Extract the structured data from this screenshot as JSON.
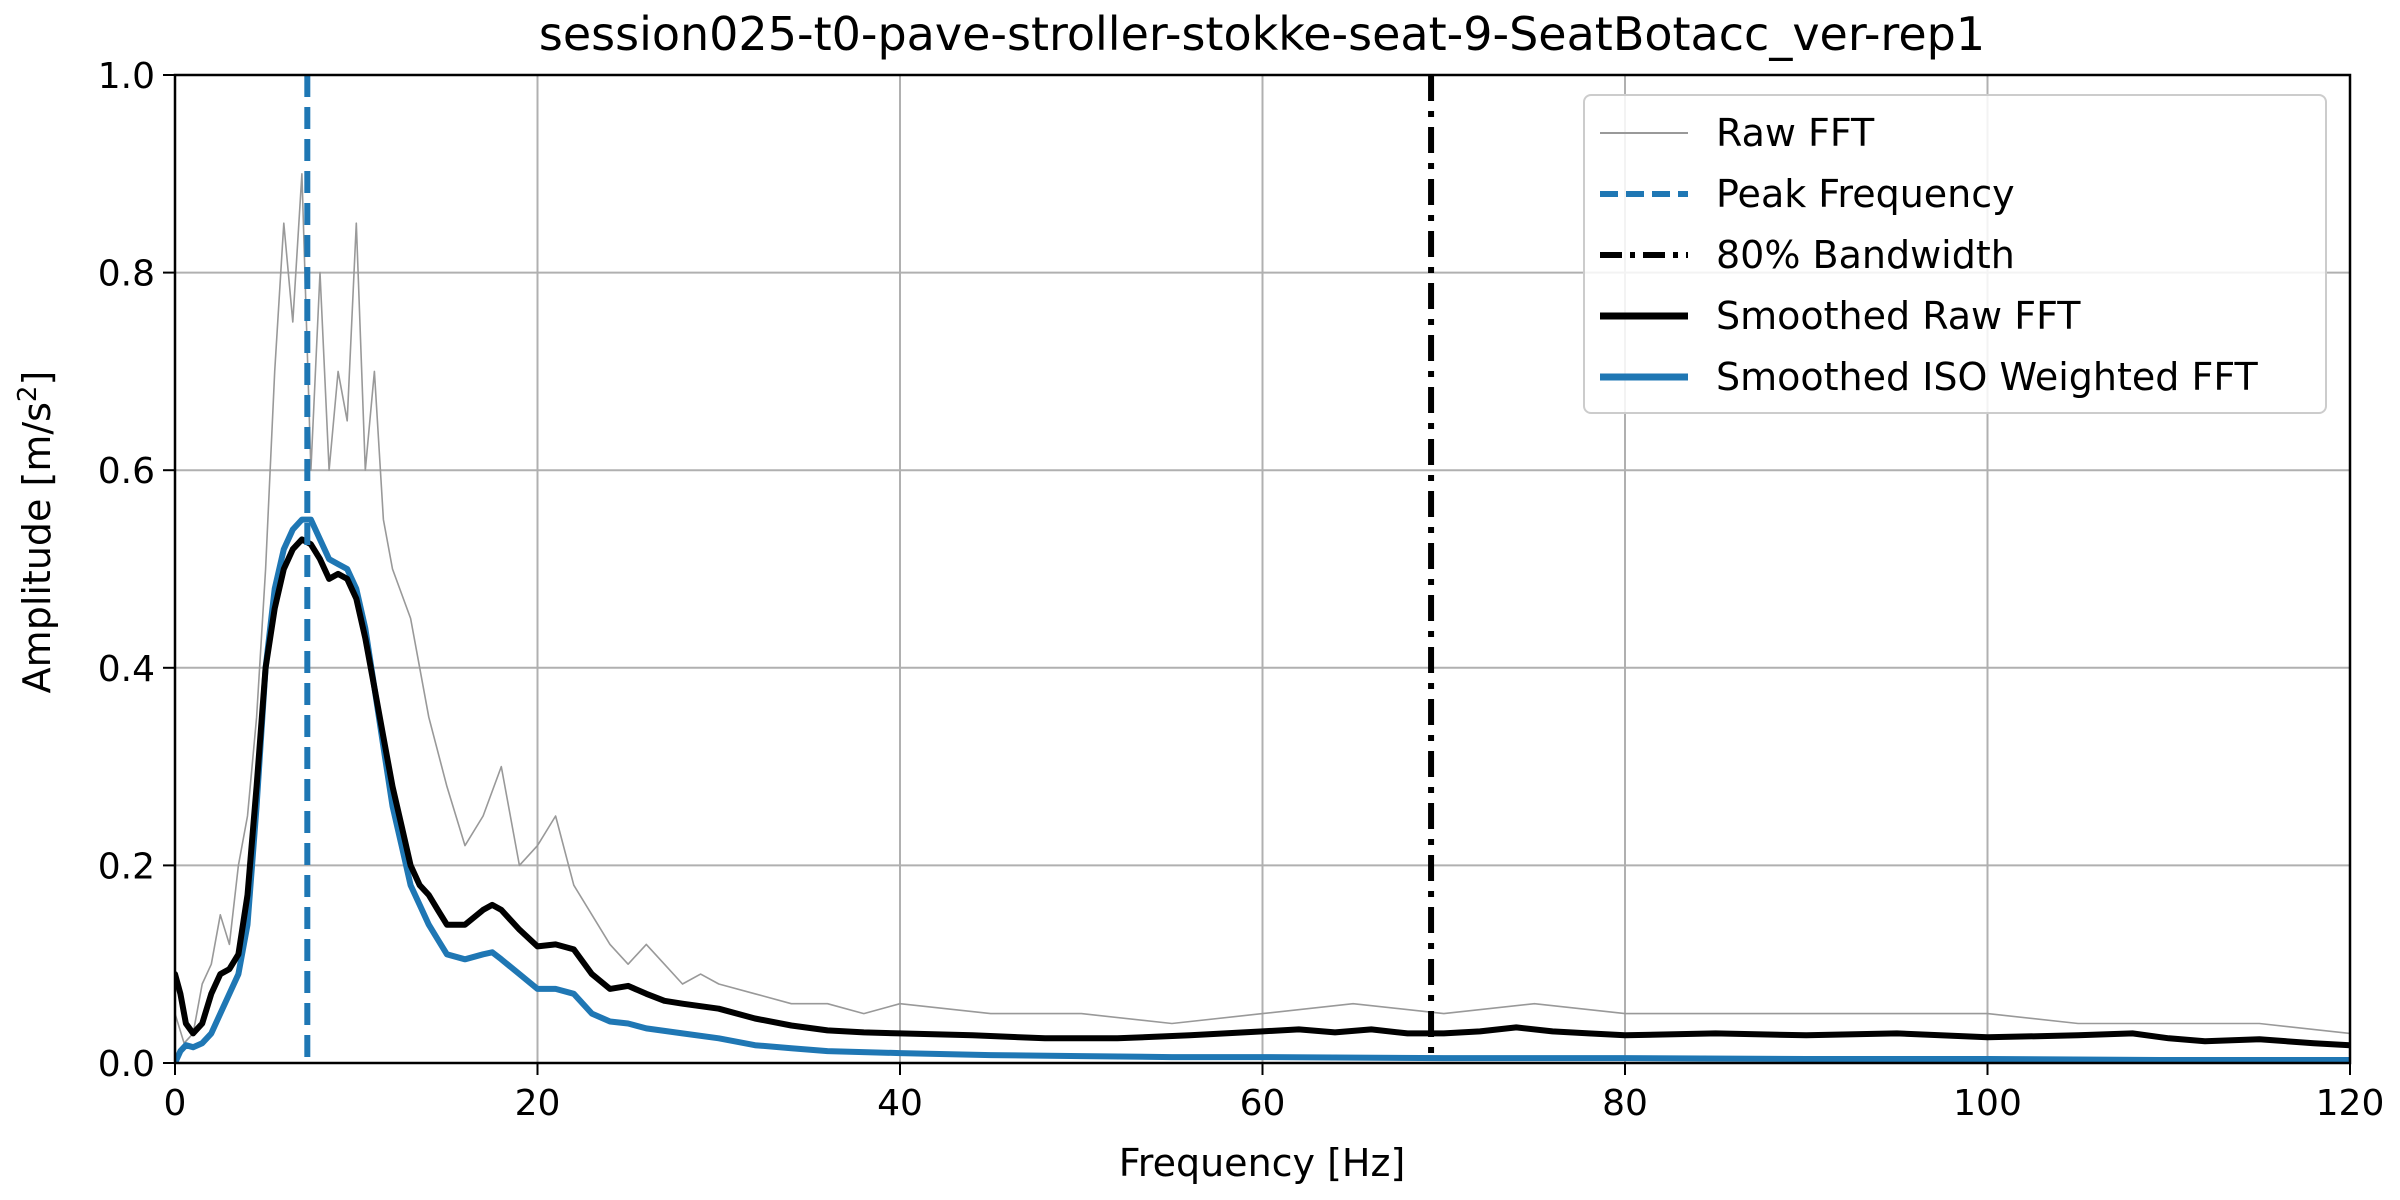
{
  "chart_data": {
    "type": "line",
    "title": "session025-t0-pave-stroller-stokke-seat-9-SeatBotacc_ver-rep1",
    "xlabel": "Frequency [Hz]",
    "ylabel_main": "Amplitude [m/s",
    "ylabel_sup": "2",
    "ylabel_tail": "]",
    "xlim": [
      0,
      120
    ],
    "ylim": [
      0,
      1.0
    ],
    "xticks": [
      0,
      20,
      40,
      60,
      80,
      100,
      120
    ],
    "yticks": [
      "0.0",
      "0.2",
      "0.4",
      "0.6",
      "0.8",
      "1.0"
    ],
    "grid": true,
    "legend_position": "top-right",
    "colors": {
      "raw": "#999999",
      "peak": "#1f77b4",
      "bandwidth": "#000000",
      "smoothed_raw": "#000000",
      "smoothed_iso": "#1f77b4"
    },
    "peak_frequency": 7.3,
    "bandwidth_80": 69.3,
    "series": [
      {
        "key": "raw",
        "name": "Raw FFT",
        "x": [
          0,
          0.5,
          1,
          1.5,
          2,
          2.5,
          3,
          3.5,
          4,
          4.5,
          5,
          5.5,
          6,
          6.5,
          7,
          7.5,
          8,
          8.5,
          9,
          9.5,
          10,
          10.5,
          11,
          11.5,
          12,
          13,
          14,
          15,
          16,
          17,
          18,
          19,
          20,
          21,
          22,
          23,
          24,
          25,
          26,
          27,
          28,
          29,
          30,
          32,
          34,
          36,
          38,
          40,
          45,
          50,
          55,
          60,
          65,
          70,
          75,
          80,
          85,
          90,
          95,
          100,
          105,
          110,
          115,
          120
        ],
        "y": [
          0.05,
          0.02,
          0.03,
          0.08,
          0.1,
          0.15,
          0.12,
          0.2,
          0.25,
          0.35,
          0.5,
          0.7,
          0.85,
          0.75,
          0.9,
          0.6,
          0.8,
          0.6,
          0.7,
          0.65,
          0.85,
          0.6,
          0.7,
          0.55,
          0.5,
          0.45,
          0.35,
          0.28,
          0.22,
          0.25,
          0.3,
          0.2,
          0.22,
          0.25,
          0.18,
          0.15,
          0.12,
          0.1,
          0.12,
          0.1,
          0.08,
          0.09,
          0.08,
          0.07,
          0.06,
          0.06,
          0.05,
          0.06,
          0.05,
          0.05,
          0.04,
          0.05,
          0.06,
          0.05,
          0.06,
          0.05,
          0.05,
          0.05,
          0.05,
          0.05,
          0.04,
          0.04,
          0.04,
          0.03
        ]
      },
      {
        "key": "smoothed_raw",
        "name": "Smoothed Raw FFT",
        "x": [
          0,
          0.3,
          0.6,
          1,
          1.5,
          2,
          2.5,
          3,
          3.5,
          4,
          4.5,
          5,
          5.5,
          6,
          6.5,
          7,
          7.5,
          8,
          8.5,
          9,
          9.5,
          10,
          10.5,
          11,
          11.5,
          12,
          12.5,
          13,
          13.5,
          14,
          14.5,
          15,
          16,
          17,
          17.5,
          18,
          19,
          20,
          21,
          22,
          23,
          24,
          25,
          26,
          27,
          28,
          30,
          32,
          34,
          36,
          38,
          40,
          44,
          48,
          52,
          56,
          60,
          62,
          64,
          66,
          68,
          70,
          72,
          74,
          76,
          78,
          80,
          85,
          90,
          95,
          100,
          105,
          108,
          110,
          112,
          115,
          118,
          120
        ],
        "y": [
          0.09,
          0.07,
          0.04,
          0.03,
          0.04,
          0.07,
          0.09,
          0.095,
          0.11,
          0.17,
          0.28,
          0.4,
          0.46,
          0.5,
          0.52,
          0.53,
          0.525,
          0.51,
          0.49,
          0.495,
          0.49,
          0.47,
          0.43,
          0.38,
          0.33,
          0.28,
          0.24,
          0.2,
          0.18,
          0.17,
          0.155,
          0.14,
          0.14,
          0.155,
          0.16,
          0.155,
          0.135,
          0.118,
          0.12,
          0.115,
          0.09,
          0.075,
          0.078,
          0.07,
          0.063,
          0.06,
          0.055,
          0.045,
          0.038,
          0.033,
          0.031,
          0.03,
          0.028,
          0.025,
          0.025,
          0.028,
          0.032,
          0.034,
          0.031,
          0.034,
          0.03,
          0.03,
          0.032,
          0.036,
          0.032,
          0.03,
          0.028,
          0.03,
          0.028,
          0.03,
          0.026,
          0.028,
          0.03,
          0.025,
          0.022,
          0.024,
          0.02,
          0.018
        ]
      },
      {
        "key": "smoothed_iso",
        "name": "Smoothed ISO Weighted FFT",
        "x": [
          0,
          0.3,
          0.6,
          1,
          1.5,
          2,
          2.5,
          3,
          3.5,
          4,
          4.5,
          5,
          5.5,
          6,
          6.5,
          7,
          7.5,
          8,
          8.5,
          9,
          9.5,
          10,
          10.5,
          11,
          11.5,
          12,
          12.5,
          13,
          13.5,
          14,
          14.5,
          15,
          16,
          17,
          17.5,
          18,
          19,
          20,
          21,
          22,
          23,
          24,
          25,
          26,
          28,
          30,
          32,
          34,
          36,
          40,
          45,
          50,
          55,
          60,
          70,
          80,
          90,
          100,
          110,
          120
        ],
        "y": [
          0.0,
          0.012,
          0.018,
          0.016,
          0.02,
          0.03,
          0.05,
          0.07,
          0.09,
          0.14,
          0.26,
          0.4,
          0.48,
          0.52,
          0.54,
          0.55,
          0.55,
          0.53,
          0.51,
          0.505,
          0.5,
          0.48,
          0.44,
          0.38,
          0.32,
          0.26,
          0.22,
          0.18,
          0.16,
          0.14,
          0.125,
          0.11,
          0.105,
          0.11,
          0.112,
          0.105,
          0.09,
          0.075,
          0.075,
          0.07,
          0.05,
          0.042,
          0.04,
          0.035,
          0.03,
          0.025,
          0.018,
          0.015,
          0.012,
          0.01,
          0.008,
          0.007,
          0.006,
          0.006,
          0.005,
          0.005,
          0.004,
          0.004,
          0.003,
          0.003
        ]
      }
    ],
    "legend": [
      {
        "label": "Raw FFT",
        "style": "raw"
      },
      {
        "label": "Peak Frequency",
        "style": "peak"
      },
      {
        "label": "80% Bandwidth",
        "style": "bandwidth"
      },
      {
        "label": "Smoothed Raw FFT",
        "style": "smoothed_raw"
      },
      {
        "label": "Smoothed ISO Weighted FFT",
        "style": "smoothed_iso"
      }
    ]
  }
}
